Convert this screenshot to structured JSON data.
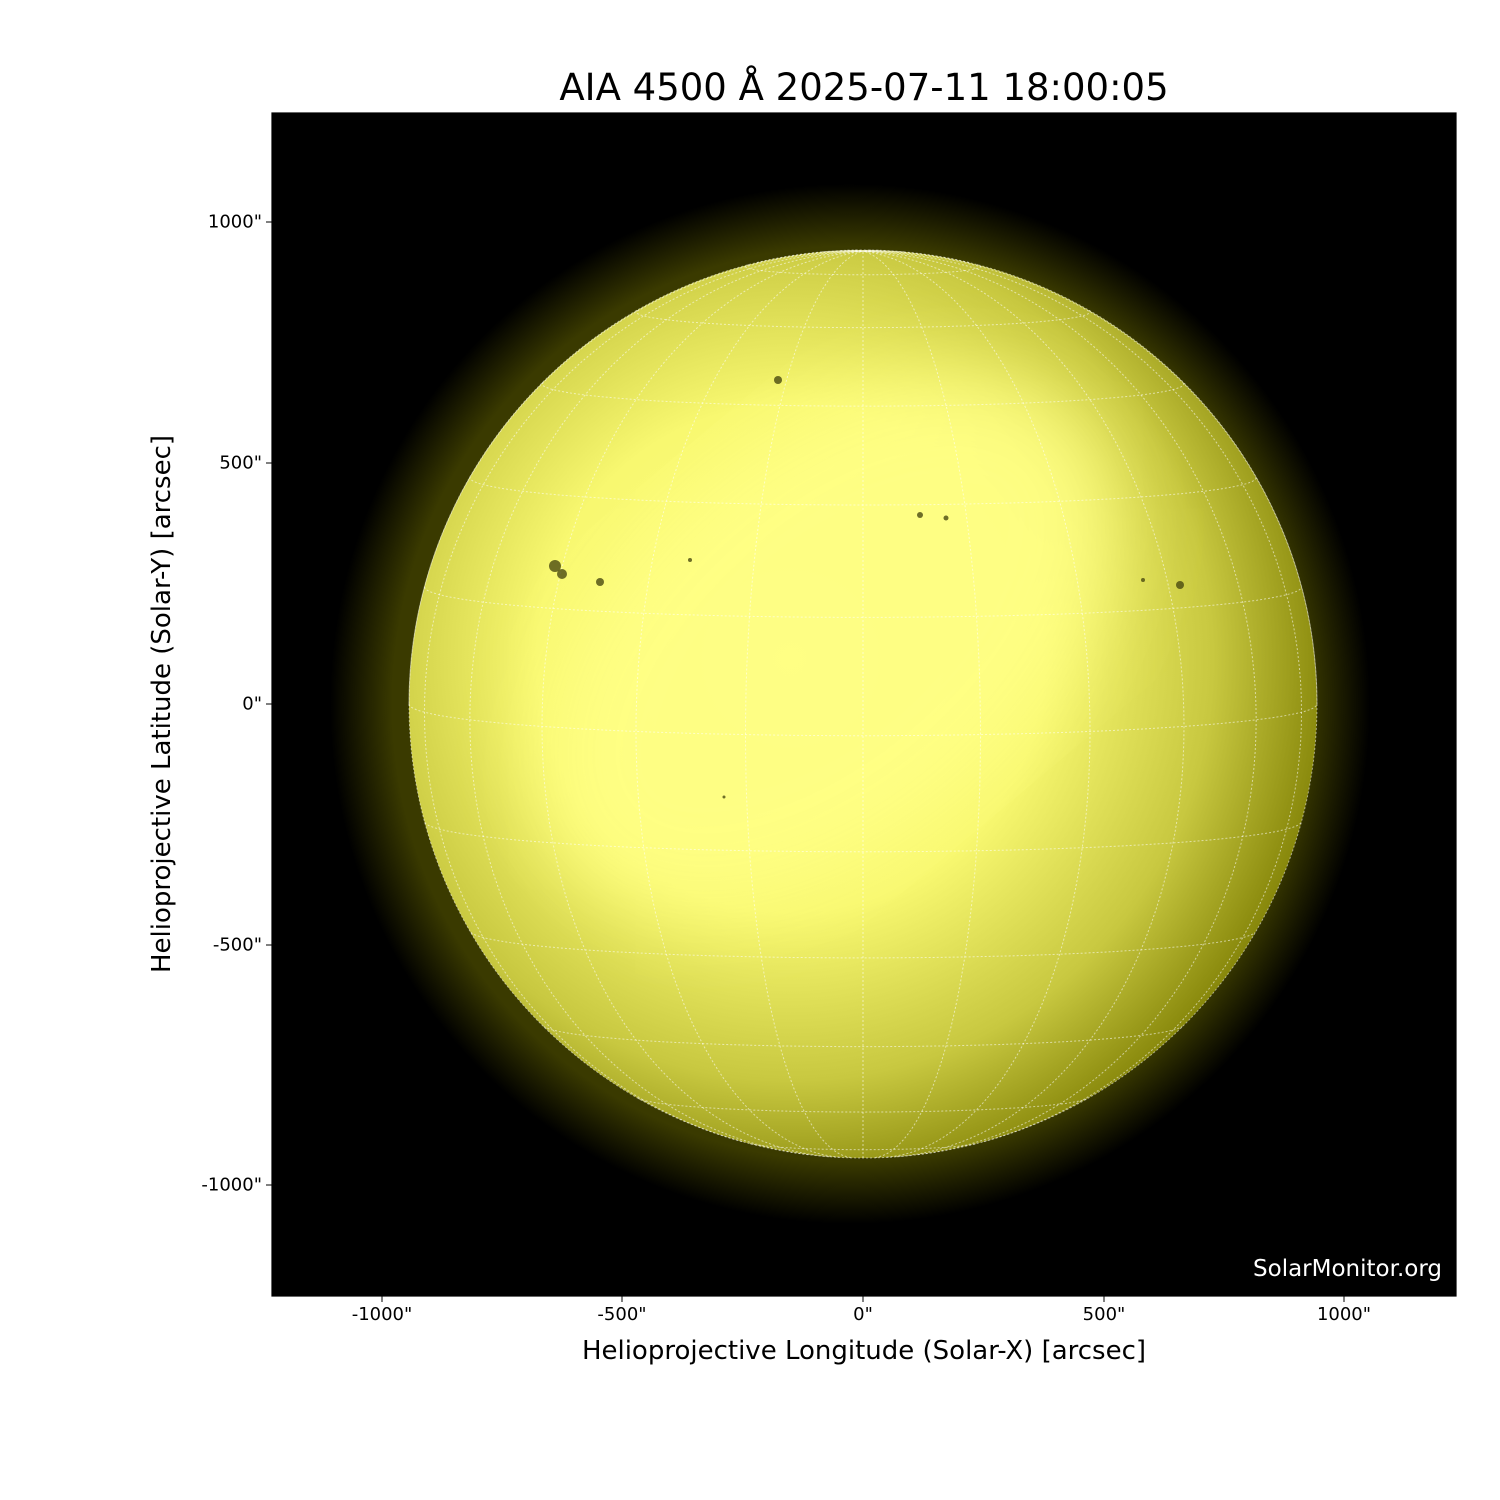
{
  "title": "AIA 4500 Å 2025-07-11 18:00:05",
  "xaxis": {
    "label": "Helioprojective Longitude (Solar-X) [arcsec]",
    "ticks": [
      "-1000\"",
      "-500\"",
      "0\"",
      "500\"",
      "1000\""
    ],
    "range_arcsec": [
      -1230,
      1230
    ]
  },
  "yaxis": {
    "label": "Helioprojective Latitude (Solar-Y) [arcsec]",
    "ticks": [
      "1000\"",
      "500\"",
      "0\"",
      "-500\"",
      "-1000\""
    ],
    "range_arcsec": [
      -1230,
      1230
    ]
  },
  "watermark": "SolarMonitor.org",
  "colors": {
    "disk": "#ffff80",
    "limb": "#8a8a00",
    "background": "#000000",
    "grid": "#ffffff"
  },
  "grid": {
    "spacing_deg": 15
  }
}
